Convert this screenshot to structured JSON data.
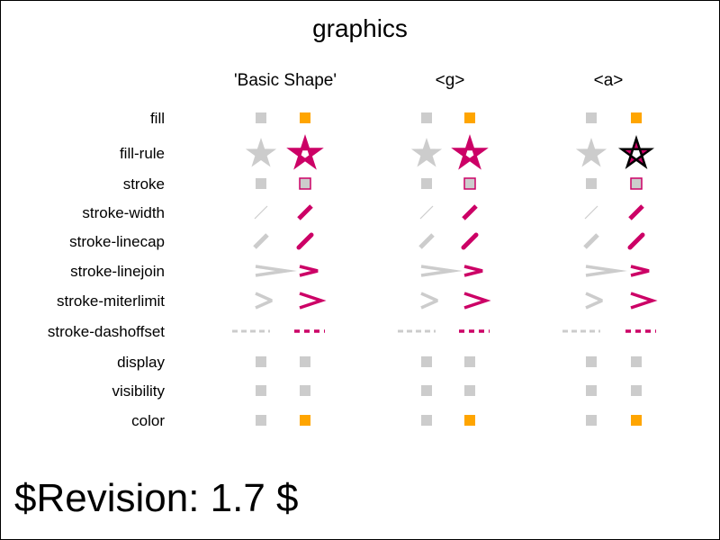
{
  "title": "graphics",
  "columns": [
    "'Basic Shape'",
    "<g>",
    "<a>"
  ],
  "rows": [
    {
      "key": "fill",
      "label": "fill"
    },
    {
      "key": "fill-rule",
      "label": "fill-rule"
    },
    {
      "key": "stroke",
      "label": "stroke"
    },
    {
      "key": "stroke-width",
      "label": "stroke-width"
    },
    {
      "key": "stroke-linecap",
      "label": "stroke-linecap"
    },
    {
      "key": "stroke-linejoin",
      "label": "stroke-linejoin"
    },
    {
      "key": "stroke-miterlimit",
      "label": "stroke-miterlimit"
    },
    {
      "key": "stroke-dashoffset",
      "label": "stroke-dashoffset"
    },
    {
      "key": "display",
      "label": "display"
    },
    {
      "key": "visibility",
      "label": "visibility"
    },
    {
      "key": "color",
      "label": "color"
    }
  ],
  "revision": "$Revision: 1.7 $",
  "colors": {
    "reference": "#cccccc",
    "accent": "#cc0066",
    "orange": "#ffa500",
    "dark": "#000000",
    "frame": "#000000"
  }
}
